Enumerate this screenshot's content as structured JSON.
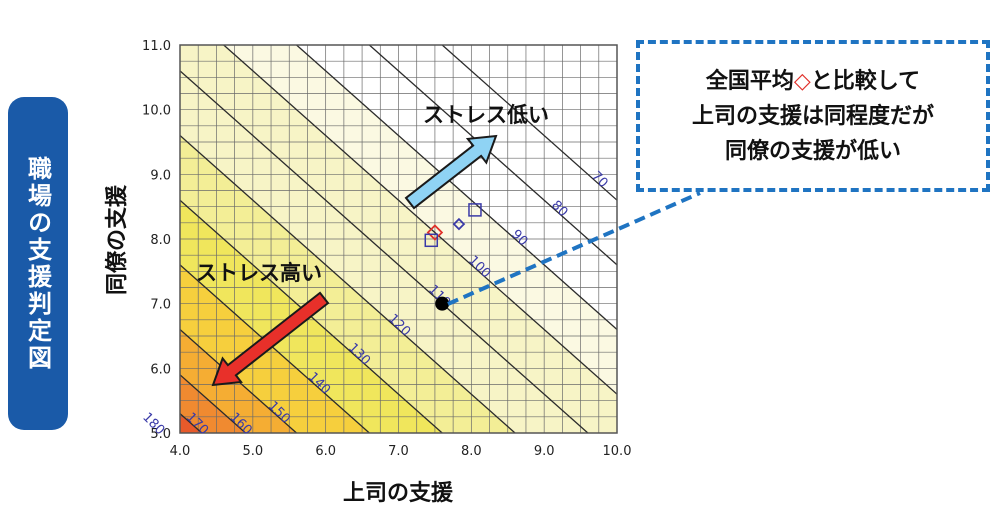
{
  "side_label": "職場の支援判定図",
  "callout": {
    "line1_before": "全国平均",
    "line1_marker": "◇",
    "line1_after": "と比較して",
    "line2": "上司の支援は同程度だが",
    "line3": "同僚の支援が低い"
  },
  "colors": {
    "accent_blue": "#1f74c2",
    "tab_blue": "#1a5aa8",
    "arrow_low": "#8fd3f4",
    "arrow_high": "#e8302a",
    "contour_label": "#3a3aa8"
  },
  "chart_data": {
    "type": "contour",
    "xlabel": "上司の支援",
    "ylabel": "同僚の支援",
    "xlim": [
      4.0,
      10.0
    ],
    "ylim": [
      5.0,
      11.0
    ],
    "x_ticks": [
      "4.0",
      "5.0",
      "6.0",
      "7.0",
      "8.0",
      "9.0",
      "10.0"
    ],
    "y_ticks": [
      "5.0",
      "6.0",
      "7.0",
      "8.0",
      "9.0",
      "10.0",
      "11.0"
    ],
    "grid": true,
    "contours": [
      {
        "label": "70",
        "sum": 18.6
      },
      {
        "label": "80",
        "sum": 17.6
      },
      {
        "label": "90",
        "sum": 16.6
      },
      {
        "label": "100",
        "sum": 15.6
      },
      {
        "label": "110",
        "sum": 14.6
      },
      {
        "label": "120",
        "sum": 13.6
      },
      {
        "label": "130",
        "sum": 12.6
      },
      {
        "label": "140",
        "sum": 11.6
      },
      {
        "label": "150",
        "sum": 10.6
      },
      {
        "label": "160",
        "sum": 9.9
      },
      {
        "label": "170",
        "sum": 9.3
      },
      {
        "label": "180",
        "sum": 8.7
      }
    ],
    "points": [
      {
        "kind": "workplace",
        "marker": "circle",
        "x": 7.6,
        "y": 7.0
      },
      {
        "kind": "national-average",
        "marker": "diamond",
        "x": 7.5,
        "y": 8.1
      },
      {
        "kind": "comparison",
        "marker": "square",
        "x": 8.05,
        "y": 8.45
      },
      {
        "kind": "comparison",
        "marker": "square",
        "x": 7.45,
        "y": 7.98
      },
      {
        "kind": "comparison",
        "marker": "diamond",
        "x": 7.83,
        "y": 8.23
      }
    ],
    "annotations": [
      {
        "text": "ストレス低い",
        "direction": "up-right"
      },
      {
        "text": "ストレス高い",
        "direction": "down-left"
      }
    ]
  }
}
